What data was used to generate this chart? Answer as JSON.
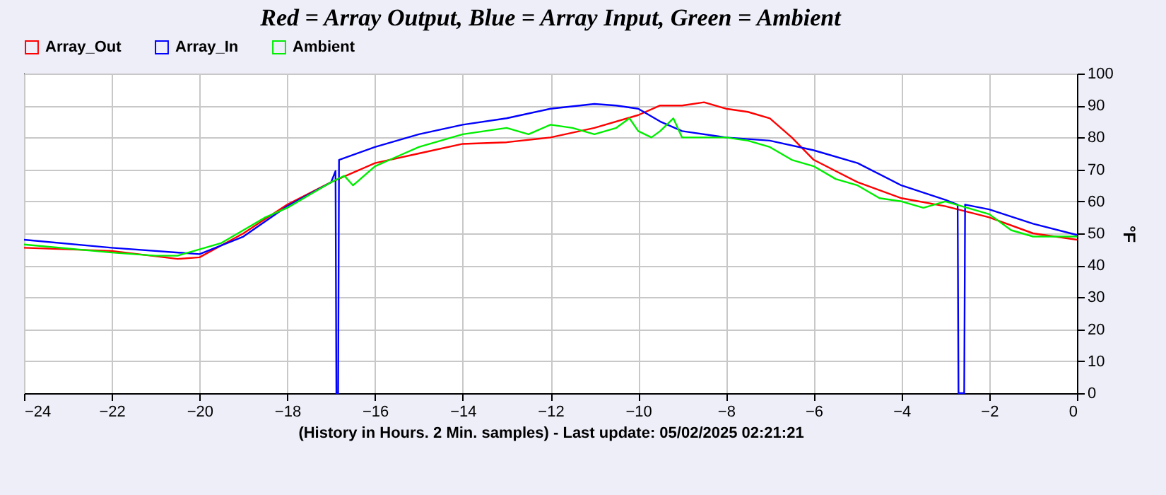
{
  "chart_data": {
    "type": "line",
    "title": "Red = Array Output, Blue = Array Input, Green = Ambient",
    "xlabel": "(History in Hours. 2 Min. samples) - Last update: 05/02/2025 02:21:21",
    "ylabel": "°F",
    "x": [
      -24,
      -22,
      -20.5,
      -20,
      -19,
      -18,
      -17,
      -16.5,
      -16,
      -15,
      -14,
      -13,
      -12,
      -11,
      -10,
      -9.5,
      -9,
      -8.5,
      -8,
      -7.5,
      -7,
      -6.5,
      -6,
      -5,
      -4,
      -3,
      -2,
      -1,
      0
    ],
    "series": [
      {
        "name": "Array_Out",
        "color": "#ff0000",
        "values": [
          45.5,
          44.5,
          42,
          42.5,
          50,
          59,
          66,
          69,
          72,
          75,
          78,
          78.5,
          80,
          83,
          87,
          90,
          90,
          91,
          89,
          88,
          86,
          80,
          73,
          66,
          61,
          58.5,
          55,
          50,
          48
        ]
      },
      {
        "name": "Array_In",
        "color": "#0000ff",
        "x": [
          -24,
          -22,
          -20,
          -19,
          -18,
          -17,
          -16.9,
          -16.88,
          -16.84,
          -16.82,
          -16,
          -15,
          -14,
          -13,
          -12,
          -11,
          -10.5,
          -10,
          -9.5,
          -9,
          -8,
          -7,
          -6,
          -5,
          -4,
          -3,
          -2.72,
          -2.7,
          -2.57,
          -2.55,
          -2,
          -1,
          0
        ],
        "values": [
          48,
          45.5,
          43.5,
          49,
          58.5,
          66,
          69.5,
          0,
          0,
          73,
          77,
          81,
          84,
          86,
          89,
          90.5,
          90,
          89,
          85,
          82,
          80,
          79,
          76,
          72,
          65,
          60.5,
          59,
          0,
          0,
          59,
          57.5,
          53,
          49.5
        ]
      },
      {
        "name": "Ambient",
        "color": "#00ee00",
        "x": [
          -24,
          -22,
          -21,
          -20.5,
          -20,
          -19.5,
          -19,
          -18.5,
          -18,
          -17.5,
          -17,
          -16.7,
          -16.5,
          -16,
          -15.5,
          -15,
          -14.5,
          -14,
          -13.5,
          -13,
          -12.5,
          -12,
          -11.5,
          -11,
          -10.5,
          -10.2,
          -10,
          -9.7,
          -9.5,
          -9.2,
          -9,
          -8.5,
          -8,
          -7.5,
          -7,
          -6.5,
          -6,
          -5.5,
          -5,
          -4.5,
          -4,
          -3.5,
          -3,
          -2.5,
          -2,
          -1.5,
          -1,
          0
        ],
        "values": [
          46.5,
          44,
          43,
          43,
          45,
          47,
          51,
          55,
          58,
          62,
          66,
          68,
          65,
          71,
          74,
          77,
          79,
          81,
          82,
          83,
          81,
          84,
          83,
          81,
          83,
          86,
          82,
          80,
          82,
          86,
          80,
          80,
          80,
          79,
          77,
          73,
          71,
          67,
          65,
          61,
          60,
          58,
          60,
          58,
          56,
          51,
          49,
          49
        ]
      }
    ],
    "xlim": [
      -24,
      0
    ],
    "xticks": [
      -24,
      -22,
      -20,
      -18,
      -16,
      -14,
      -12,
      -10,
      -8,
      -6,
      -4,
      -2,
      0
    ],
    "ylim": [
      0,
      100
    ],
    "yticks": [
      0,
      10,
      20,
      30,
      40,
      50,
      60,
      70,
      80,
      90,
      100
    ],
    "grid": true,
    "legend": "top left",
    "marker": "none",
    "line_style": "solid"
  }
}
